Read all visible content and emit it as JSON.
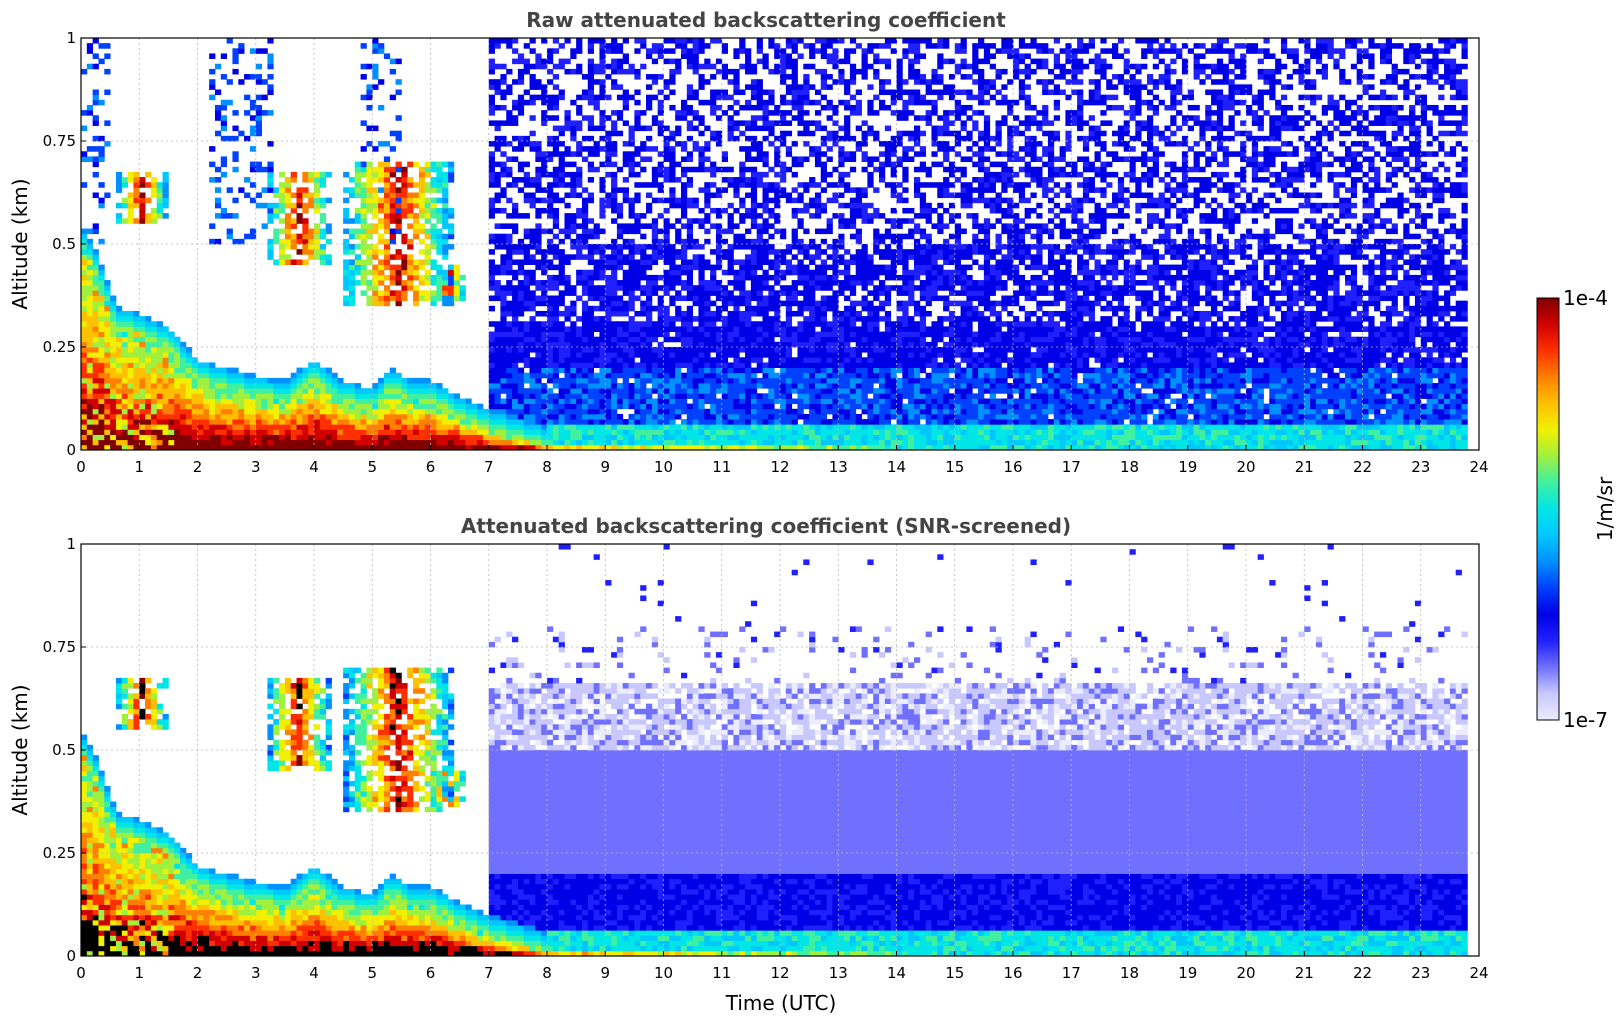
{
  "chart_data": [
    {
      "type": "heatmap",
      "title": "Raw attenuated backscattering coefficient",
      "xlabel": "",
      "ylabel": "Altitude (km)",
      "xlim": [
        0,
        24
      ],
      "ylim": [
        0,
        1
      ],
      "xticks": [
        "0",
        "1",
        "2",
        "3",
        "4",
        "5",
        "6",
        "7",
        "8",
        "9",
        "10",
        "11",
        "12",
        "13",
        "14",
        "15",
        "16",
        "17",
        "18",
        "19",
        "20",
        "21",
        "22",
        "23",
        "24"
      ],
      "yticks": [
        "0",
        "0.25",
        "0.5",
        "0.75",
        "1"
      ],
      "grid": true,
      "screened": false,
      "features": {
        "boundary_layer_top_km": [
          [
            0,
            0.5
          ],
          [
            0.3,
            0.42
          ],
          [
            0.6,
            0.3
          ],
          [
            1.0,
            0.28
          ],
          [
            1.5,
            0.25
          ],
          [
            2.0,
            0.17
          ],
          [
            2.5,
            0.15
          ],
          [
            3.0,
            0.13
          ],
          [
            3.5,
            0.12
          ],
          [
            4.0,
            0.17
          ],
          [
            4.5,
            0.12
          ],
          [
            5.0,
            0.1
          ],
          [
            5.3,
            0.15
          ],
          [
            5.7,
            0.12
          ],
          [
            6.0,
            0.12
          ],
          [
            6.5,
            0.08
          ],
          [
            7.0,
            0.05
          ],
          [
            7.5,
            0.03
          ],
          [
            8.0,
            0.01
          ],
          [
            24,
            0.0
          ]
        ],
        "clouds": [
          {
            "t_start": 0.6,
            "t_end": 1.5,
            "alt_low_km": 0.55,
            "alt_high_km": 0.68
          },
          {
            "t_start": 3.2,
            "t_end": 4.3,
            "alt_low_km": 0.45,
            "alt_high_km": 0.68
          },
          {
            "t_start": 4.5,
            "t_end": 6.4,
            "alt_low_km": 0.35,
            "alt_high_km": 0.7
          },
          {
            "t_start": 6.0,
            "t_end": 6.6,
            "alt_low_km": 0.36,
            "alt_high_km": 0.45
          }
        ],
        "noise_onset_utc": 7.0,
        "data_end_utc": 23.75
      }
    },
    {
      "type": "heatmap",
      "title": "Attenuated backscattering coefficient (SNR-screened)",
      "xlabel": "Time (UTC)",
      "ylabel": "Altitude (km)",
      "xlim": [
        0,
        24
      ],
      "ylim": [
        0,
        1
      ],
      "xticks": [
        "0",
        "1",
        "2",
        "3",
        "4",
        "5",
        "6",
        "7",
        "8",
        "9",
        "10",
        "11",
        "12",
        "13",
        "14",
        "15",
        "16",
        "17",
        "18",
        "19",
        "20",
        "21",
        "22",
        "23",
        "24"
      ],
      "yticks": [
        "0",
        "0.25",
        "0.5",
        "0.75",
        "1"
      ],
      "grid": true,
      "screened": true,
      "saturated_color": "#000000"
    }
  ],
  "colorbar": {
    "label": "1/m/sr",
    "min_label": "1e-7",
    "max_label": "1e-4",
    "colors": [
      "#ececff",
      "#c8c8ff",
      "#7070ff",
      "#2020ff",
      "#0000e6",
      "#0040ff",
      "#0090ff",
      "#00c8ff",
      "#00e6e6",
      "#40f0a0",
      "#a0f040",
      "#f0f000",
      "#ffc000",
      "#ff8000",
      "#ff3000",
      "#d00000",
      "#800000"
    ]
  }
}
